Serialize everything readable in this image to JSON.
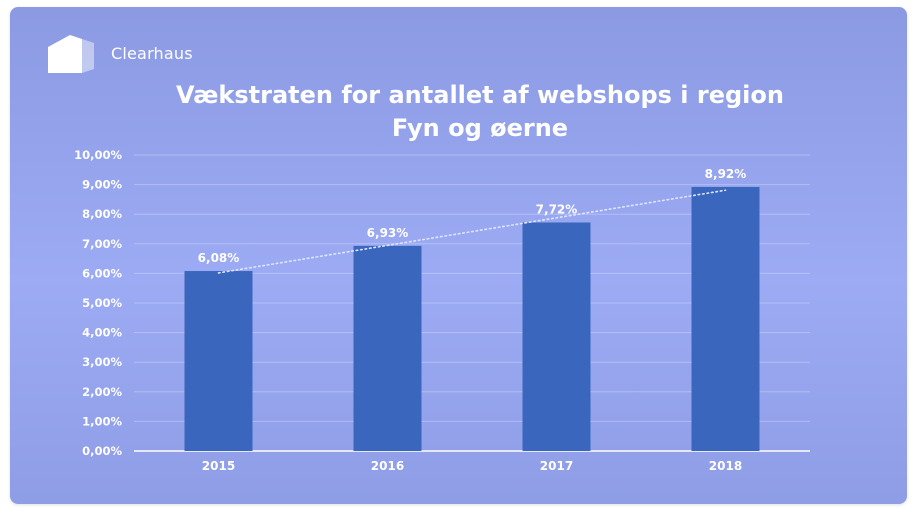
{
  "brand": {
    "name": "Clearhaus"
  },
  "colors": {
    "bar": "#3a66bd",
    "background": "#95a4ee",
    "text": "#ffffff"
  },
  "chart_data": {
    "type": "bar",
    "title": [
      "Vækstraten for antallet af webshops i region",
      "Fyn og øerne"
    ],
    "xlabel": "",
    "ylabel": "",
    "categories": [
      "2015",
      "2016",
      "2017",
      "2018"
    ],
    "values": [
      6.08,
      6.93,
      7.72,
      8.92
    ],
    "value_labels": [
      "6,08%",
      "6,93%",
      "7,72%",
      "8,92%"
    ],
    "ylim": [
      0,
      10
    ],
    "yticks": [
      0,
      1,
      2,
      3,
      4,
      5,
      6,
      7,
      8,
      9,
      10
    ],
    "ytick_labels": [
      "0,00%",
      "1,00%",
      "2,00%",
      "3,00%",
      "4,00%",
      "5,00%",
      "6,00%",
      "7,00%",
      "8,00%",
      "9,00%",
      "10,00%"
    ],
    "grid": true,
    "trendline": "dotted linear",
    "legend": "none"
  }
}
